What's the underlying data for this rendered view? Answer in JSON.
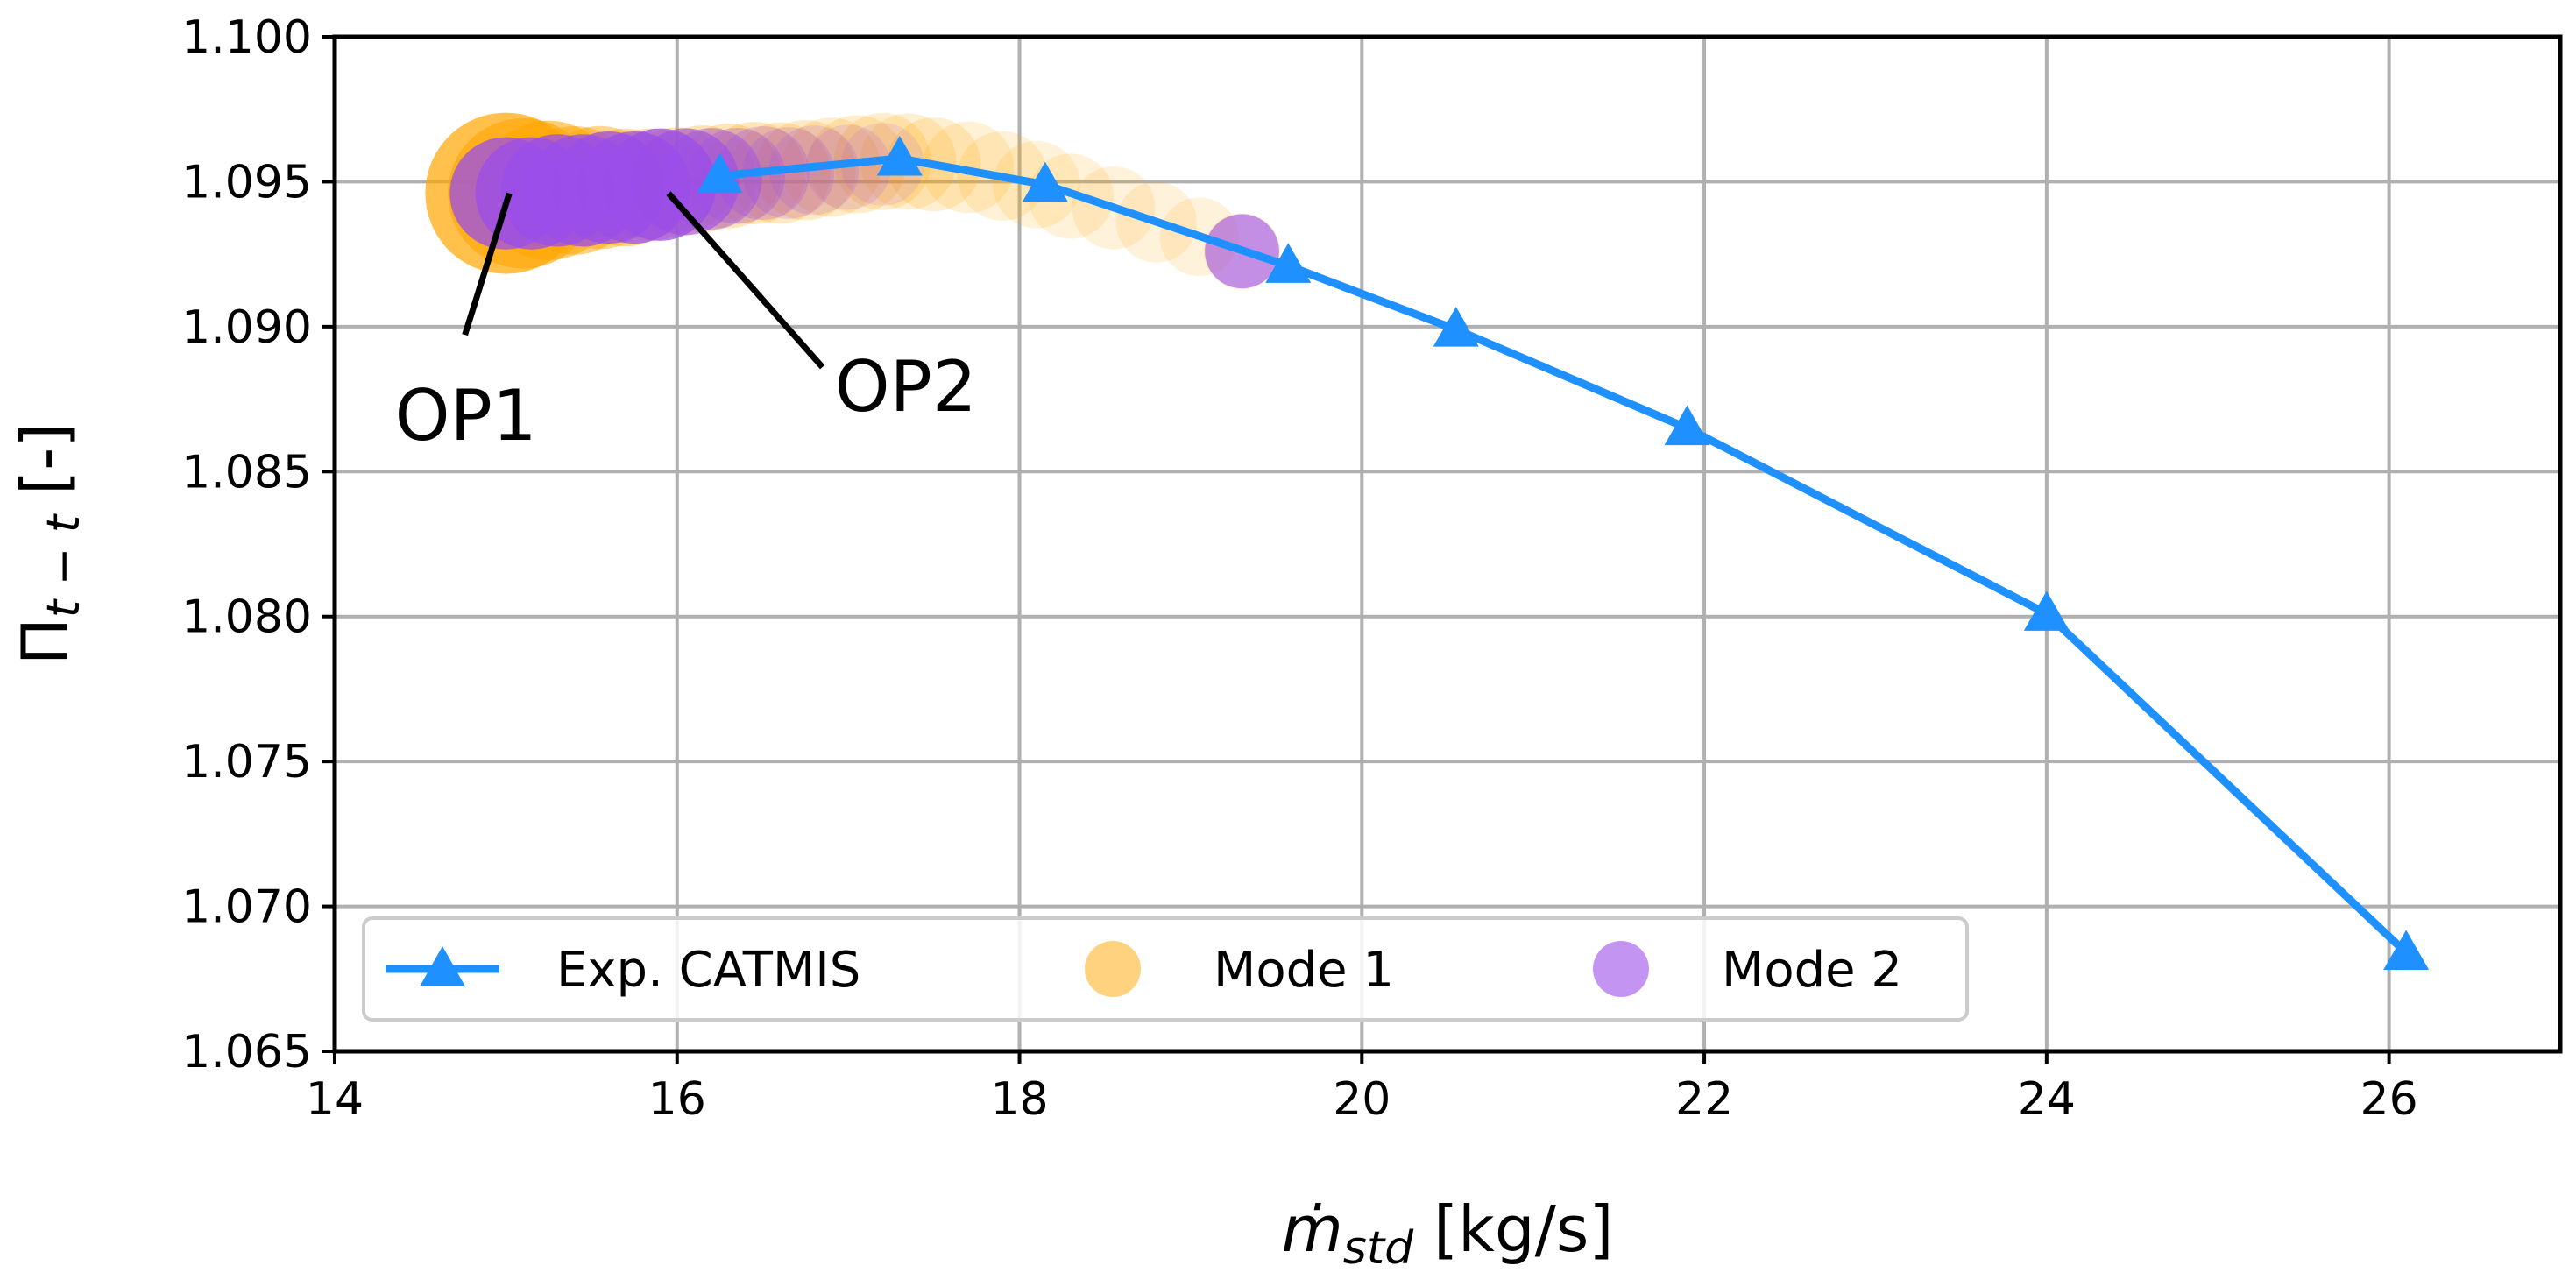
{
  "chart_data": {
    "type": "scatter",
    "title": "",
    "xlabel": "ṁ",
    "xlabel_sub": "std",
    "xlabel_unit": " [kg/s]",
    "ylabel": "Π",
    "ylabel_sub": "t − t",
    "ylabel_unit": " [-]",
    "xlim": [
      14,
      27
    ],
    "ylim": [
      1.065,
      1.1
    ],
    "xticks": [
      14,
      16,
      18,
      20,
      22,
      24,
      26
    ],
    "yticks": [
      1.065,
      1.07,
      1.075,
      1.08,
      1.085,
      1.09,
      1.095,
      1.1
    ],
    "ytick_labels": [
      "1.065",
      "1.070",
      "1.075",
      "1.080",
      "1.085",
      "1.090",
      "1.095",
      "1.100"
    ],
    "grid": true,
    "legend_position": "bottom-left",
    "series": [
      {
        "name": "Exp. CATMIS",
        "kind": "line-triangle",
        "color": "#1E90FF",
        "x": [
          16.25,
          17.3,
          18.15,
          19.57,
          20.55,
          21.9,
          24.0,
          26.1
        ],
        "y": [
          1.0952,
          1.0958,
          1.0949,
          1.0921,
          1.0899,
          1.0865,
          1.0801,
          1.0684
        ]
      },
      {
        "name": "Mode 1",
        "kind": "scatter",
        "color": "#FFA500",
        "x": [
          15.0,
          15.1,
          15.25,
          15.4,
          15.55,
          15.7,
          15.85,
          16.0,
          16.15,
          16.3,
          16.45,
          16.6,
          16.75,
          16.9,
          17.05,
          17.2,
          17.35,
          17.5,
          17.7,
          17.9,
          18.1,
          18.3,
          18.55,
          18.8,
          19.05,
          19.3
        ],
        "y": [
          1.0946,
          1.0946,
          1.0947,
          1.0947,
          1.0948,
          1.0948,
          1.0949,
          1.095,
          1.0951,
          1.0952,
          1.0953,
          1.0953,
          1.0954,
          1.0955,
          1.0956,
          1.0957,
          1.0957,
          1.0956,
          1.0955,
          1.0952,
          1.0949,
          1.0945,
          1.0941,
          1.0936,
          1.0931,
          1.0926
        ],
        "sizes": [
          1.0,
          0.9,
          0.8,
          0.7,
          0.65,
          0.6,
          0.55,
          0.52,
          0.5,
          0.48,
          0.46,
          0.45,
          0.44,
          0.43,
          0.42,
          0.41,
          0.4,
          0.38,
          0.36,
          0.34,
          0.32,
          0.3,
          0.28,
          0.26,
          0.24,
          0.22
        ],
        "alphas": [
          0.7,
          0.6,
          0.55,
          0.5,
          0.45,
          0.4,
          0.35,
          0.3,
          0.3,
          0.28,
          0.26,
          0.24,
          0.22,
          0.2,
          0.2,
          0.2,
          0.18,
          0.18,
          0.16,
          0.16,
          0.15,
          0.15,
          0.14,
          0.14,
          0.14,
          0.14
        ]
      },
      {
        "name": "Mode 2",
        "kind": "scatter",
        "color": "#9B4DEA",
        "x": [
          15.0,
          15.15,
          15.3,
          15.45,
          15.6,
          15.75,
          15.9,
          16.05,
          16.2,
          16.35,
          16.5,
          16.65,
          16.8,
          17.0,
          17.2,
          19.3
        ],
        "y": [
          1.0946,
          1.0946,
          1.0947,
          1.0947,
          1.0948,
          1.0948,
          1.0949,
          1.095,
          1.0951,
          1.0952,
          1.0953,
          1.0953,
          1.0954,
          1.0955,
          1.0956,
          1.0926
        ],
        "sizes": [
          0.55,
          0.55,
          0.55,
          0.55,
          0.55,
          0.55,
          0.55,
          0.5,
          0.45,
          0.4,
          0.38,
          0.36,
          0.34,
          0.3,
          0.28,
          0.2
        ],
        "alphas": [
          0.75,
          0.75,
          0.75,
          0.75,
          0.75,
          0.75,
          0.75,
          0.6,
          0.45,
          0.3,
          0.25,
          0.2,
          0.18,
          0.15,
          0.12,
          0.6
        ]
      }
    ],
    "annotations": [
      {
        "text": "OP1",
        "x": 15.02,
        "y": 1.0946,
        "label_x": 14.3,
        "label_y": 1.087
      },
      {
        "text": "OP2",
        "x": 15.95,
        "y": 1.0946,
        "label_x": 16.9,
        "label_y": 1.088
      }
    ]
  }
}
